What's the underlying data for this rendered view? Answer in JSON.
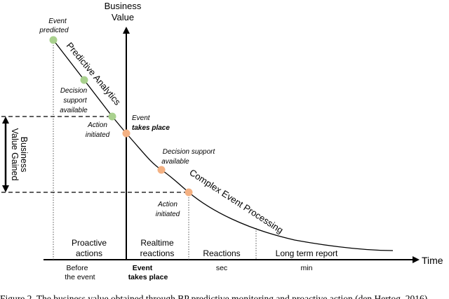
{
  "axes": {
    "y_label_line1": "Business",
    "y_label_line2": "Value",
    "x_label": "Time"
  },
  "curve_labels": {
    "predictive": "Predictive Analytics",
    "cep": "Complex Event Processing"
  },
  "points": {
    "event_predicted": [
      "Event",
      "predicted"
    ],
    "decision_support_1": [
      "Decision",
      "support",
      "available"
    ],
    "action_initiated_1": [
      "Action",
      "initiated"
    ],
    "event_takes_place": [
      "Event",
      "takes place"
    ],
    "decision_support_2": [
      "Decision support",
      "available"
    ],
    "action_initiated_2": [
      "Action",
      "initiated"
    ]
  },
  "value_gained": [
    "Business",
    "Value Gained"
  ],
  "phases": {
    "proactive": [
      "Proactive",
      "actions"
    ],
    "realtime": [
      "Realtime",
      "reactions"
    ],
    "reactions": "Reactions",
    "long_term": "Long term report"
  },
  "timeline": {
    "before": [
      "Before",
      "the event"
    ],
    "event": [
      "Event",
      "takes place"
    ],
    "sec": "sec",
    "min": "min"
  },
  "caption": "Figure 2. The business value obtained through BP predictive monitoring and proactive action (den Hertog, 2016)",
  "colors": {
    "green_point": "#a9d18e",
    "orange_point": "#f4b183",
    "line": "#000000",
    "citation": "#1f4e9c"
  }
}
